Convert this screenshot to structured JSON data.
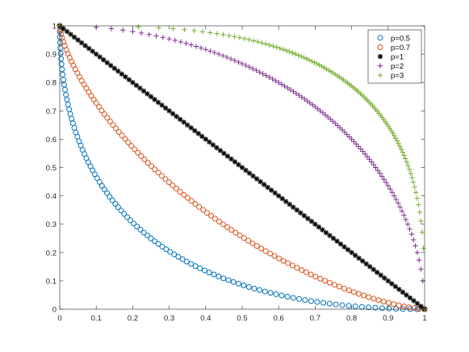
{
  "chart_data": {
    "type": "scatter",
    "xlim": [
      0,
      1
    ],
    "ylim": [
      0,
      1
    ],
    "x_ticks": [
      "0",
      "0.1",
      "0.2",
      "0.3",
      "0.4",
      "0.5",
      "0.6",
      "0.7",
      "0.8",
      "0.9",
      "1"
    ],
    "y_ticks": [
      "0",
      "0.1",
      "0.2",
      "0.3",
      "0.4",
      "0.5",
      "0.6",
      "0.7",
      "0.8",
      "0.9",
      "1"
    ],
    "grid": false,
    "legend_position": "top-right",
    "curve": "x^p + y^p = 1",
    "series": [
      {
        "name": "p=0.5",
        "p": 0.5,
        "marker": "circle",
        "color": "#0072BD"
      },
      {
        "name": "p=0.7",
        "p": 0.7,
        "marker": "circle",
        "color": "#D95319"
      },
      {
        "name": "p=1",
        "p": 1,
        "marker": "asterisk",
        "color": "#000000"
      },
      {
        "name": "p=2",
        "p": 2,
        "marker": "plus",
        "color": "#7E2F8E"
      },
      {
        "name": "p=3",
        "p": 3,
        "marker": "plus",
        "color": "#77AC30"
      }
    ]
  }
}
